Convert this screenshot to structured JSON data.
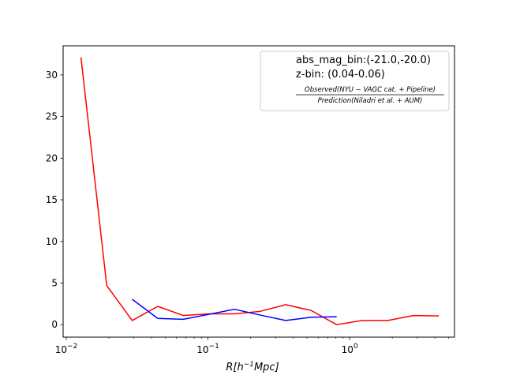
{
  "chart_data": {
    "type": "line",
    "title": "",
    "xlabel": "R[h^{-1}Mpc]",
    "xlabel_parts": {
      "base": "R[h",
      "sup": "−1",
      "tail": "Mpc]"
    },
    "ylabel": "",
    "xscale": "log",
    "xlim": [
      0.0095,
      5.5
    ],
    "ylim": [
      -1.5,
      33.5
    ],
    "x_ticks": [
      0.01,
      0.1,
      1
    ],
    "x_tick_labels": [
      {
        "base": "10",
        "exp": "−2"
      },
      {
        "base": "10",
        "exp": "−1"
      },
      {
        "base": "10",
        "exp": "0"
      }
    ],
    "y_ticks": [
      0,
      5,
      10,
      15,
      20,
      25,
      30
    ],
    "y_tick_labels": [
      "0",
      "5",
      "10",
      "15",
      "20",
      "25",
      "30"
    ],
    "grid": false,
    "legend_position": "top-right",
    "legend": {
      "line1": "abs_mag_bin:(-21.0,-20.0)",
      "line2": "z-bin: (0.04-0.06)",
      "numerator": "Observed(NYU − VAGC cat. + Pipeline)",
      "denominator": "Prediction(Niladri et al. + AUM)"
    },
    "series": [
      {
        "color": "#ff0000",
        "x": [
          0.0127,
          0.0193,
          0.0292,
          0.0442,
          0.067,
          0.102,
          0.154,
          0.234,
          0.354,
          0.536,
          0.81,
          1.23,
          1.86,
          2.82,
          4.27
        ],
        "y": [
          32.1,
          4.7,
          0.5,
          2.2,
          1.1,
          1.3,
          1.3,
          1.6,
          2.4,
          1.7,
          0.0,
          0.5,
          0.5,
          1.1,
          1.05
        ]
      },
      {
        "color": "#0000ff",
        "x": [
          0.0292,
          0.0442,
          0.067,
          0.102,
          0.154,
          0.234,
          0.354,
          0.536,
          0.81
        ],
        "y": [
          3.05,
          0.75,
          0.65,
          1.25,
          1.85,
          1.15,
          0.5,
          0.9,
          0.95
        ]
      }
    ]
  }
}
